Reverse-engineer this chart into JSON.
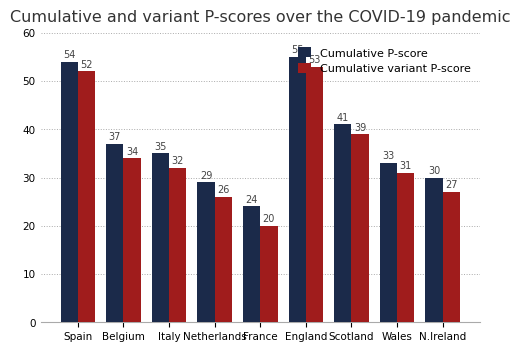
{
  "title": "Cumulative and variant P-scores over the COVID-19 pandemic",
  "categories": [
    "Spain",
    "Belgium",
    "Italy",
    "Netherlands",
    "France",
    "England",
    "Scotland",
    "Wales",
    "N.Ireland"
  ],
  "cumulative": [
    54,
    37,
    35,
    29,
    24,
    55,
    41,
    33,
    30
  ],
  "variant": [
    52,
    34,
    32,
    26,
    20,
    53,
    39,
    31,
    27
  ],
  "color_cumulative": "#1b2a4a",
  "color_variant": "#a01c1c",
  "legend_labels": [
    "Cumulative P-score",
    "Cumulative variant P-score"
  ],
  "ylim": [
    0,
    60
  ],
  "yticks": [
    0,
    10,
    20,
    30,
    40,
    50,
    60
  ],
  "bar_width": 0.38,
  "background_color": "#ffffff",
  "title_fontsize": 11.5,
  "tick_fontsize": 7.5,
  "label_fontsize": 7,
  "legend_fontsize": 8
}
